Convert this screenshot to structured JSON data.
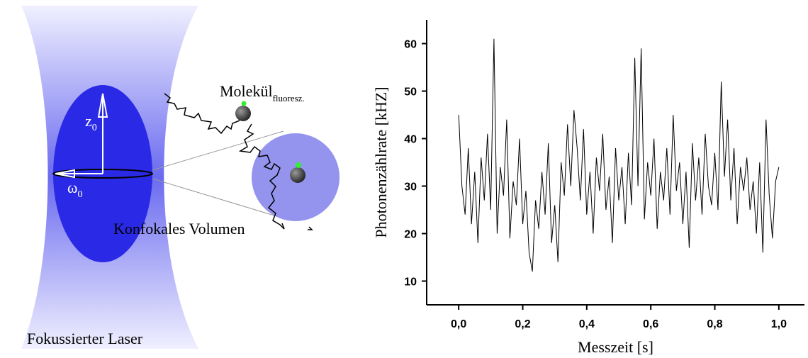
{
  "diagram": {
    "molecule_label": "Molekül",
    "molecule_subscript": "fluoresz.",
    "z_label": "z",
    "z_subscript": "0",
    "omega_label": "ω",
    "omega_subscript": "0",
    "volume_label": "Konfokales Volumen",
    "laser_label": "Fokussierter Laser"
  },
  "chart_data": {
    "type": "line",
    "xlabel": "Messzeit [s]",
    "ylabel": "Photonenzählrate [kHZ]",
    "color": "#000000",
    "x": [
      0,
      0.01,
      0.02,
      0.03,
      0.04,
      0.05,
      0.06,
      0.07,
      0.08,
      0.09,
      0.1,
      0.11,
      0.12,
      0.13,
      0.14,
      0.15,
      0.16,
      0.17,
      0.18,
      0.19,
      0.2,
      0.21,
      0.22,
      0.23,
      0.24,
      0.25,
      0.26,
      0.27,
      0.28,
      0.29,
      0.3,
      0.31,
      0.32,
      0.33,
      0.34,
      0.35,
      0.36,
      0.37,
      0.38,
      0.39,
      0.4,
      0.41,
      0.42,
      0.43,
      0.44,
      0.45,
      0.46,
      0.47,
      0.48,
      0.49,
      0.5,
      0.51,
      0.52,
      0.53,
      0.54,
      0.55,
      0.56,
      0.57,
      0.58,
      0.59,
      0.6,
      0.61,
      0.62,
      0.63,
      0.64,
      0.65,
      0.66,
      0.67,
      0.68,
      0.69,
      0.7,
      0.71,
      0.72,
      0.73,
      0.74,
      0.75,
      0.76,
      0.77,
      0.78,
      0.79,
      0.8,
      0.81,
      0.82,
      0.83,
      0.84,
      0.85,
      0.86,
      0.87,
      0.88,
      0.89,
      0.9,
      0.91,
      0.92,
      0.93,
      0.94,
      0.95,
      0.96,
      0.97,
      0.98,
      0.99,
      1
    ],
    "values": [
      45,
      30,
      24,
      38,
      22,
      33,
      18,
      36,
      27,
      41,
      25,
      61,
      20,
      34,
      28,
      44,
      19,
      31,
      26,
      40,
      22,
      29,
      16,
      12,
      27,
      21,
      33,
      24,
      39,
      18,
      26,
      14,
      35,
      28,
      43,
      30,
      46,
      38,
      27,
      42,
      24,
      33,
      20,
      36,
      29,
      41,
      25,
      32,
      18,
      38,
      27,
      34,
      22,
      37,
      26,
      57,
      30,
      59,
      23,
      35,
      28,
      40,
      21,
      33,
      27,
      38,
      24,
      45,
      29,
      35,
      22,
      33,
      17,
      39,
      27,
      36,
      24,
      41,
      30,
      26,
      37,
      25,
      52,
      32,
      44,
      27,
      38,
      22,
      34,
      29,
      36,
      25,
      31,
      20,
      35,
      16,
      44,
      28,
      19,
      31,
      34
    ],
    "xlim": [
      -0.1,
      1.08
    ],
    "ylim": [
      5,
      65
    ],
    "xticks": [
      {
        "value": 0,
        "label": "0,0"
      },
      {
        "value": 0.2,
        "label": "0,2"
      },
      {
        "value": 0.4,
        "label": "0,4"
      },
      {
        "value": 0.6,
        "label": "0,6"
      },
      {
        "value": 0.8,
        "label": "0,8"
      },
      {
        "value": 1,
        "label": "1,0"
      }
    ],
    "yticks": [
      10,
      20,
      30,
      40,
      50,
      60
    ]
  }
}
